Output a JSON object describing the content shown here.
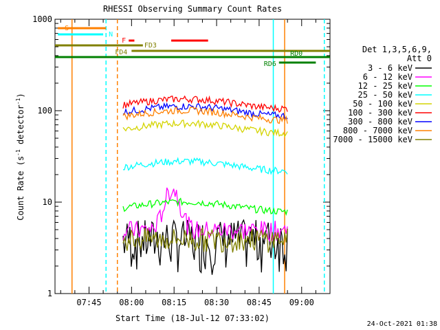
{
  "chart_data": {
    "type": "line",
    "title": "RHESSI Observing Summary Count Rates",
    "xlabel": "Start Time (18-Jul-12 07:33:02)",
    "ylabel": "Count Rate (s^-1 detector^-1)",
    "ylabel_main": "Count Rate (s",
    "ylabel_sup1": "-1",
    "ylabel_mid": " detector",
    "ylabel_sup2": "-1",
    "ylabel_end": ")",
    "y_scale": "log",
    "ylim": [
      1,
      1000
    ],
    "xlim": [
      "07:33",
      "09:10"
    ],
    "x_tick_labels": [
      "07:45",
      "08:00",
      "08:15",
      "08:30",
      "08:45",
      "09:00"
    ],
    "y_tick_labels": [
      "1",
      "10",
      "100",
      "1000"
    ],
    "legend_header": [
      "Det 1,3,5,6,9,",
      "Att 0"
    ],
    "legend_position": "right",
    "series": [
      {
        "name": "3 - 6 keV",
        "color": "#000000",
        "level": 4,
        "x_start": "07:57",
        "x_end": "08:55"
      },
      {
        "name": "6 - 12 keV",
        "color": "#ff00ff",
        "level": 5,
        "x_start": "07:57",
        "x_end": "08:55"
      },
      {
        "name": "12 - 25 keV",
        "color": "#00ff00",
        "level": 9,
        "x_start": "07:57",
        "x_end": "08:55"
      },
      {
        "name": "25 - 50 keV",
        "color": "#00ffff",
        "level": 25,
        "x_start": "07:57",
        "x_end": "08:55"
      },
      {
        "name": "50 - 100 keV",
        "color": "#d4d400",
        "level": 65,
        "x_start": "07:57",
        "x_end": "08:55"
      },
      {
        "name": "100 - 300 keV",
        "color": "#ff0000",
        "level": 120,
        "x_start": "07:57",
        "x_end": "08:55"
      },
      {
        "name": "300 - 800 keV",
        "color": "#0000ff",
        "level": 100,
        "x_start": "07:57",
        "x_end": "08:55"
      },
      {
        "name": "800 - 7000 keV",
        "color": "#ff8000",
        "level": 90,
        "x_start": "07:57",
        "x_end": "08:55"
      },
      {
        "name": "7000 - 15000 keV",
        "color": "#808000",
        "level": 4,
        "x_start": "07:57",
        "x_end": "08:55"
      }
    ],
    "flags": [
      {
        "label": "S",
        "color": "#ff8000",
        "x_start": "07:34",
        "x_end": "07:51"
      },
      {
        "label": "N",
        "color": "#00ffff",
        "x_start": "07:34",
        "x_end": "07:50"
      },
      {
        "label": "F",
        "color": "#ff0000",
        "x_start": "07:59",
        "x_end": "08:01"
      },
      {
        "label": "FD3",
        "color": "#808000",
        "x_start": "07:33",
        "x_end": "08:04"
      },
      {
        "label": "",
        "color": "#ff0000",
        "x_start": "08:14",
        "x_end": "08:27"
      },
      {
        "label": "FD4",
        "color": "#808000",
        "x_start": "08:00",
        "x_end": "09:10"
      },
      {
        "label": "RD0",
        "color": "#008000",
        "x_start": "07:33",
        "x_end": "09:10"
      },
      {
        "label": "RD6",
        "color": "#008000",
        "x_start": "08:52",
        "x_end": "09:05"
      }
    ],
    "vertical_markers": [
      {
        "x": "07:39",
        "color": "#ff8000",
        "style": "solid"
      },
      {
        "x": "07:51",
        "color": "#00ffff",
        "style": "dashed"
      },
      {
        "x": "07:55",
        "color": "#ff8000",
        "style": "dashed"
      },
      {
        "x": "08:50",
        "color": "#00ffff",
        "style": "solid"
      },
      {
        "x": "08:54",
        "color": "#ff8000",
        "style": "solid"
      },
      {
        "x": "09:08",
        "color": "#00ffff",
        "style": "dashed"
      }
    ],
    "timestamp": "24-Oct-2021 01:38",
    "grid": false
  },
  "colors": {
    "axis": "#000000",
    "background": "#ffffff"
  }
}
